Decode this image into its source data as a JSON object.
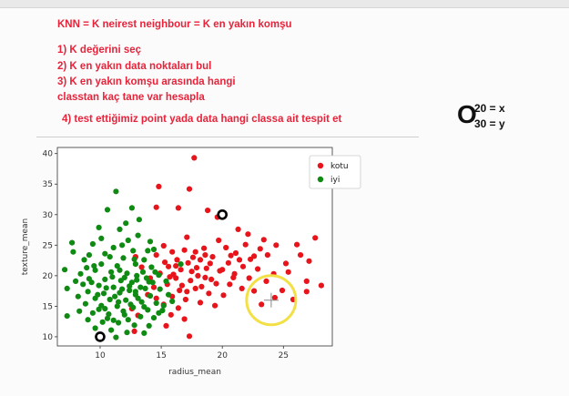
{
  "notes": {
    "title": "KNN = K neirest neighbour  = K en yakın komşu",
    "step1": "1) K  değerini seç",
    "step2": "2) K en yakın data noktaları bul",
    "step3a": "3) K en yakın komşu arasında hangi",
    "step3b": "classtan kaç tane var hesapla",
    "step4": "4) test ettiğimiz point yada data hangi classa ait tespit et"
  },
  "equation": {
    "symbol": "O",
    "top": "20 = x",
    "bottom": "30 = y"
  },
  "colors": {
    "red": "#e8141b",
    "green": "#0f8a13",
    "note_text": "#e8233a",
    "highlight": "#f2e046"
  },
  "chart_data": {
    "type": "scatter",
    "xlabel": "radius_mean",
    "ylabel": "texture_mean",
    "xlim": [
      6.5,
      29
    ],
    "ylim": [
      8.5,
      41
    ],
    "xticks": [
      10,
      15,
      20,
      25
    ],
    "yticks": [
      10,
      15,
      20,
      25,
      30,
      35,
      40
    ],
    "legend_position": "top-right",
    "series": [
      {
        "name": "kotu",
        "color": "#e8141b",
        "points": [
          [
            17.7,
            39.3
          ],
          [
            14.8,
            34.6
          ],
          [
            17.3,
            34.2
          ],
          [
            14.6,
            31.2
          ],
          [
            19.6,
            29.6
          ],
          [
            18.8,
            30.7
          ],
          [
            16.4,
            31.1
          ],
          [
            17.1,
            26.3
          ],
          [
            21.3,
            27.6
          ],
          [
            22.1,
            26.8
          ],
          [
            23.4,
            25.9
          ],
          [
            27.6,
            26.2
          ],
          [
            26.1,
            25.1
          ],
          [
            24.4,
            25.0
          ],
          [
            23.1,
            24.4
          ],
          [
            27.1,
            22.4
          ],
          [
            25.2,
            22.0
          ],
          [
            22.6,
            23.2
          ],
          [
            21.1,
            23.7
          ],
          [
            20.3,
            24.6
          ],
          [
            19.7,
            25.8
          ],
          [
            18.5,
            24.5
          ],
          [
            17.8,
            23.9
          ],
          [
            16.9,
            24.2
          ],
          [
            15.9,
            23.9
          ],
          [
            15.2,
            24.9
          ],
          [
            14.6,
            23.4
          ],
          [
            16.3,
            22.6
          ],
          [
            17.2,
            22.1
          ],
          [
            18.2,
            22.6
          ],
          [
            19.2,
            23.1
          ],
          [
            20.5,
            22.1
          ],
          [
            21.7,
            21.5
          ],
          [
            22.9,
            21.1
          ],
          [
            24.2,
            20.3
          ],
          [
            25.4,
            20.6
          ],
          [
            26.9,
            19.1
          ],
          [
            28.1,
            18.4
          ],
          [
            23.6,
            19.1
          ],
          [
            22.2,
            19.6
          ],
          [
            21.0,
            20.3
          ],
          [
            19.8,
            20.8
          ],
          [
            18.7,
            21.2
          ],
          [
            17.5,
            20.7
          ],
          [
            16.6,
            21.0
          ],
          [
            15.6,
            21.5
          ],
          [
            14.9,
            20.4
          ],
          [
            16.2,
            19.6
          ],
          [
            17.4,
            19.2
          ],
          [
            18.6,
            19.7
          ],
          [
            19.5,
            18.7
          ],
          [
            20.6,
            18.6
          ],
          [
            21.6,
            17.9
          ],
          [
            22.6,
            17.5
          ],
          [
            24.9,
            17.6
          ],
          [
            25.8,
            16.1
          ],
          [
            20.1,
            16.8
          ],
          [
            18.9,
            17.1
          ],
          [
            17.8,
            17.9
          ],
          [
            16.5,
            17.6
          ],
          [
            15.5,
            18.6
          ],
          [
            14.4,
            18.1
          ],
          [
            15.9,
            16.6
          ],
          [
            17.0,
            16.1
          ],
          [
            18.2,
            15.6
          ],
          [
            19.4,
            15.1
          ],
          [
            16.4,
            14.7
          ],
          [
            15.2,
            15.3
          ],
          [
            14.6,
            16.3
          ],
          [
            15.8,
            13.6
          ],
          [
            16.9,
            12.9
          ],
          [
            15.4,
            11.8
          ],
          [
            17.3,
            10.1
          ],
          [
            16.2,
            21.6
          ],
          [
            17.6,
            23.0
          ],
          [
            18.0,
            20.0
          ],
          [
            19.0,
            22.0
          ],
          [
            20.0,
            21.0
          ],
          [
            21.4,
            22.6
          ],
          [
            22.3,
            22.7
          ],
          [
            17.9,
            21.3
          ],
          [
            16.0,
            20.2
          ],
          [
            15.3,
            22.2
          ],
          [
            16.7,
            18.4
          ],
          [
            19.1,
            19.4
          ],
          [
            20.9,
            19.7
          ],
          [
            18.3,
            18.2
          ],
          [
            17.1,
            17.4
          ],
          [
            15.7,
            19.8
          ],
          [
            13.9,
            16.9
          ],
          [
            14.1,
            19.6
          ],
          [
            18.6,
            23.4
          ],
          [
            20.7,
            23.3
          ],
          [
            23.7,
            23.4
          ],
          [
            26.4,
            23.4
          ],
          [
            12.8,
            10.9
          ],
          [
            13.1,
            13.5
          ],
          [
            12.6,
            14.6
          ],
          [
            13.4,
            21.4
          ],
          [
            12.9,
            23.1
          ],
          [
            21.9,
            25.1
          ],
          [
            24.3,
            16.4
          ],
          [
            26.9,
            17.4
          ],
          [
            23.2,
            15.3
          ]
        ]
      },
      {
        "name": "iyi",
        "color": "#0f8a13",
        "points": [
          [
            11.3,
            33.8
          ],
          [
            10.6,
            30.8
          ],
          [
            12.6,
            31.1
          ],
          [
            13.2,
            29.2
          ],
          [
            12.1,
            28.6
          ],
          [
            9.9,
            27.9
          ],
          [
            11.6,
            27.6
          ],
          [
            13.1,
            26.6
          ],
          [
            10.1,
            26.1
          ],
          [
            12.3,
            25.8
          ],
          [
            14.1,
            25.6
          ],
          [
            7.7,
            25.4
          ],
          [
            9.4,
            25.2
          ],
          [
            11.1,
            24.6
          ],
          [
            12.7,
            24.1
          ],
          [
            14.4,
            24.3
          ],
          [
            7.8,
            23.9
          ],
          [
            9.1,
            23.4
          ],
          [
            10.4,
            23.6
          ],
          [
            11.9,
            22.9
          ],
          [
            13.6,
            22.6
          ],
          [
            8.7,
            22.6
          ],
          [
            10.1,
            21.9
          ],
          [
            11.4,
            21.6
          ],
          [
            12.9,
            21.9
          ],
          [
            14.2,
            21.4
          ],
          [
            7.1,
            21.0
          ],
          [
            9.6,
            20.9
          ],
          [
            10.9,
            20.6
          ],
          [
            12.2,
            20.4
          ],
          [
            13.5,
            20.6
          ],
          [
            14.8,
            20.1
          ],
          [
            8.4,
            20.3
          ],
          [
            9.1,
            19.5
          ],
          [
            10.4,
            19.4
          ],
          [
            11.7,
            19.2
          ],
          [
            13.0,
            19.3
          ],
          [
            14.3,
            18.9
          ],
          [
            15.4,
            19.1
          ],
          [
            8.6,
            18.6
          ],
          [
            9.9,
            18.4
          ],
          [
            11.1,
            18.1
          ],
          [
            12.4,
            18.3
          ],
          [
            13.7,
            17.9
          ],
          [
            14.9,
            17.8
          ],
          [
            7.3,
            17.9
          ],
          [
            9.0,
            17.4
          ],
          [
            10.3,
            17.1
          ],
          [
            11.6,
            17.2
          ],
          [
            12.9,
            16.9
          ],
          [
            14.1,
            16.7
          ],
          [
            15.6,
            16.9
          ],
          [
            8.2,
            16.6
          ],
          [
            9.6,
            16.3
          ],
          [
            10.8,
            16.1
          ],
          [
            12.1,
            16.0
          ],
          [
            13.4,
            15.7
          ],
          [
            14.6,
            15.5
          ],
          [
            15.9,
            15.8
          ],
          [
            8.8,
            15.4
          ],
          [
            10.1,
            15.1
          ],
          [
            11.4,
            15.0
          ],
          [
            12.7,
            14.8
          ],
          [
            13.9,
            14.4
          ],
          [
            15.1,
            14.3
          ],
          [
            8.3,
            14.2
          ],
          [
            9.4,
            13.9
          ],
          [
            10.7,
            13.7
          ],
          [
            12.0,
            13.6
          ],
          [
            13.3,
            13.3
          ],
          [
            14.4,
            13.1
          ],
          [
            7.3,
            13.4
          ],
          [
            9.0,
            12.8
          ],
          [
            10.2,
            12.4
          ],
          [
            11.5,
            12.3
          ],
          [
            12.8,
            11.9
          ],
          [
            14.0,
            11.8
          ],
          [
            9.6,
            11.4
          ],
          [
            10.9,
            11.1
          ],
          [
            12.2,
            10.7
          ],
          [
            13.6,
            10.6
          ],
          [
            11.3,
            9.9
          ],
          [
            10.6,
            13.0
          ],
          [
            11.9,
            14.2
          ],
          [
            12.5,
            15.3
          ],
          [
            13.1,
            16.3
          ],
          [
            11.8,
            17.8
          ],
          [
            12.6,
            18.9
          ],
          [
            13.3,
            18.1
          ],
          [
            12.0,
            19.7
          ],
          [
            11.0,
            19.8
          ],
          [
            10.5,
            18.0
          ],
          [
            9.8,
            16.9
          ],
          [
            11.2,
            16.6
          ],
          [
            12.4,
            17.6
          ],
          [
            13.8,
            19.6
          ],
          [
            14.5,
            20.6
          ],
          [
            11.6,
            20.9
          ],
          [
            12.8,
            22.7
          ],
          [
            11.8,
            25.0
          ],
          [
            10.8,
            23.1
          ],
          [
            9.5,
            21.6
          ],
          [
            8.0,
            19.1
          ],
          [
            13.9,
            24.1
          ],
          [
            16.6,
            21.9
          ],
          [
            15.2,
            15.1
          ],
          [
            14.8,
            13.9
          ],
          [
            9.9,
            14.5
          ],
          [
            12.3,
            12.8
          ],
          [
            13.6,
            14.9
          ],
          [
            12.9,
            17.4
          ],
          [
            11.5,
            15.7
          ],
          [
            10.4,
            14.6
          ],
          [
            13.0,
            20.0
          ],
          [
            14.0,
            19.0
          ],
          [
            11.1,
            12.7
          ],
          [
            9.3,
            18.9
          ],
          [
            8.9,
            21.3
          ]
        ]
      }
    ],
    "test_points": [
      [
        10,
        10
      ],
      [
        20,
        30
      ]
    ],
    "highlight_circle": {
      "x": 24,
      "y": 16
    }
  }
}
